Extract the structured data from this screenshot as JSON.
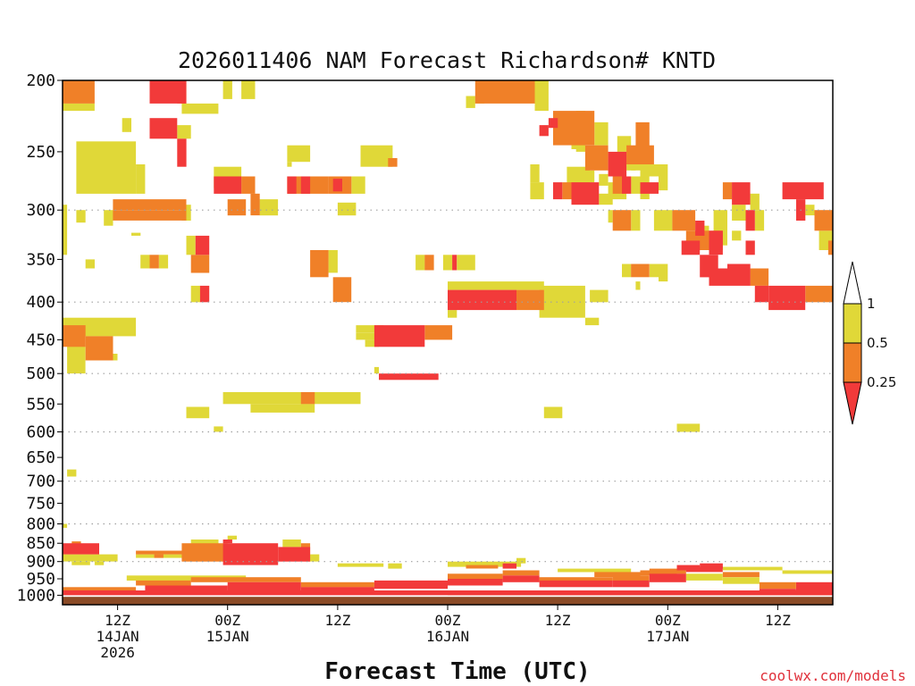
{
  "chart_data": {
    "type": "heatmap",
    "title": "2026011406 NAM Forecast Richardson# KNTD",
    "xlabel": "Forecast Time (UTC)",
    "credit": "coolwx.com/models",
    "y_axis": {
      "units": "hPa",
      "scale": "log",
      "range": [
        200,
        1030
      ],
      "ticks": [
        200,
        250,
        300,
        350,
        400,
        450,
        500,
        550,
        600,
        650,
        700,
        750,
        800,
        850,
        900,
        950,
        1000
      ],
      "tick_labels": [
        "200",
        "250",
        "300",
        "350",
        "400",
        "450",
        "500",
        "550",
        "600",
        "650",
        "700",
        "750",
        "800",
        "850",
        "900",
        "950",
        "1000"
      ],
      "dotted_gridlines": [
        300,
        400,
        500,
        600,
        700,
        800,
        900
      ]
    },
    "x_axis": {
      "units": "hours from 2026-01-14 06Z",
      "range": [
        0,
        84
      ],
      "ticks": [
        {
          "hour": 6,
          "lines": [
            "12Z",
            "14JAN",
            "2026"
          ]
        },
        {
          "hour": 18,
          "lines": [
            "00Z",
            "15JAN"
          ]
        },
        {
          "hour": 30,
          "lines": [
            "12Z"
          ]
        },
        {
          "hour": 42,
          "lines": [
            "00Z",
            "16JAN"
          ]
        },
        {
          "hour": 54,
          "lines": [
            "12Z"
          ]
        },
        {
          "hour": 66,
          "lines": [
            "00Z",
            "17JAN"
          ]
        },
        {
          "hour": 78,
          "lines": [
            "12Z"
          ]
        }
      ]
    },
    "colorbar": {
      "labels": [
        "1",
        "0.5",
        "0.25"
      ],
      "categories": [
        {
          "name": "Ri<0.25",
          "color": "#f23a3a"
        },
        {
          "name": "0.25-0.5",
          "color": "#f08028"
        },
        {
          "name": "0.5-1",
          "color": "#e0d838"
        }
      ]
    },
    "ground_color": "#8a4a26",
    "cells": [
      [
        0,
        3.5,
        200,
        215,
        "o"
      ],
      [
        0,
        3.5,
        215,
        220,
        "y"
      ],
      [
        9.5,
        13.5,
        200,
        215,
        "r"
      ],
      [
        12.5,
        13.5,
        200,
        215,
        "o"
      ],
      [
        13,
        17,
        215,
        222,
        "y"
      ],
      [
        17.5,
        18.5,
        200,
        212,
        "y"
      ],
      [
        19.5,
        21,
        200,
        212,
        "y"
      ],
      [
        9.5,
        12.5,
        225,
        240,
        "r"
      ],
      [
        10.5,
        11,
        228,
        236,
        "o"
      ],
      [
        12.5,
        14,
        230,
        240,
        "y"
      ],
      [
        6.5,
        7.5,
        225,
        235,
        "y"
      ],
      [
        1.5,
        8,
        242,
        285,
        "y"
      ],
      [
        8,
        9,
        260,
        285,
        "y"
      ],
      [
        12.5,
        13.5,
        240,
        262,
        "r"
      ],
      [
        16.5,
        19.5,
        262,
        280,
        "y"
      ],
      [
        16.5,
        19.5,
        270,
        285,
        "r"
      ],
      [
        19.5,
        21,
        270,
        285,
        "o"
      ],
      [
        20.5,
        21.5,
        285,
        305,
        "o"
      ],
      [
        18,
        20,
        290,
        305,
        "o"
      ],
      [
        21.5,
        23.5,
        290,
        305,
        "y"
      ],
      [
        24.5,
        27,
        245,
        258,
        "y"
      ],
      [
        24.5,
        25,
        258,
        262,
        "y"
      ],
      [
        24.5,
        29,
        270,
        285,
        "o"
      ],
      [
        24.5,
        25.5,
        270,
        285,
        "r"
      ],
      [
        26,
        27,
        270,
        285,
        "r"
      ],
      [
        29,
        31.5,
        270,
        285,
        "o"
      ],
      [
        29.5,
        30.5,
        272,
        283,
        "r"
      ],
      [
        31.5,
        33,
        270,
        285,
        "y"
      ],
      [
        32.5,
        36,
        245,
        262,
        "y"
      ],
      [
        35.5,
        36.5,
        255,
        262,
        "o"
      ],
      [
        30,
        32,
        293,
        305,
        "y"
      ],
      [
        5.5,
        13.5,
        290,
        300,
        "o"
      ],
      [
        5.5,
        13.5,
        300,
        310,
        "o"
      ],
      [
        13,
        14,
        295,
        310,
        "y"
      ],
      [
        4.5,
        5.5,
        300,
        315,
        "y"
      ],
      [
        1.5,
        2.5,
        300,
        312,
        "y"
      ],
      [
        0,
        0.5,
        295,
        345,
        "y"
      ],
      [
        7.5,
        8.5,
        322,
        325,
        "y"
      ],
      [
        13.5,
        14.5,
        325,
        345,
        "y"
      ],
      [
        14.5,
        16,
        325,
        345,
        "r"
      ],
      [
        14,
        16,
        345,
        365,
        "o"
      ],
      [
        8.5,
        9.5,
        345,
        360,
        "y"
      ],
      [
        9.5,
        10.5,
        345,
        360,
        "o"
      ],
      [
        10.5,
        11.5,
        345,
        360,
        "y"
      ],
      [
        2.5,
        3.5,
        350,
        360,
        "y"
      ],
      [
        14,
        15,
        380,
        400,
        "y"
      ],
      [
        15,
        16,
        380,
        400,
        "r"
      ],
      [
        27,
        29,
        340,
        370,
        "o"
      ],
      [
        29,
        30,
        340,
        365,
        "y"
      ],
      [
        29.5,
        31.5,
        370,
        400,
        "o"
      ],
      [
        38.5,
        39.5,
        345,
        362,
        "y"
      ],
      [
        39.5,
        40.5,
        345,
        362,
        "o"
      ],
      [
        41.5,
        42.5,
        345,
        362,
        "y"
      ],
      [
        42.5,
        43,
        345,
        362,
        "r"
      ],
      [
        43,
        45,
        345,
        362,
        "y"
      ],
      [
        42,
        49.5,
        385,
        410,
        "r"
      ],
      [
        42,
        52.5,
        375,
        385,
        "y"
      ],
      [
        49.5,
        52.5,
        385,
        410,
        "o"
      ],
      [
        42,
        43,
        410,
        420,
        "y"
      ],
      [
        52,
        57,
        380,
        420,
        "y"
      ],
      [
        57,
        58.5,
        420,
        430,
        "y"
      ],
      [
        57.5,
        59.5,
        385,
        400,
        "y"
      ],
      [
        32,
        35,
        430,
        440,
        "y"
      ],
      [
        32,
        34.5,
        440,
        450,
        "y"
      ],
      [
        34,
        39.5,
        430,
        460,
        "r"
      ],
      [
        39.5,
        42.5,
        430,
        450,
        "o"
      ],
      [
        33,
        34.5,
        450,
        460,
        "y"
      ],
      [
        34.5,
        41,
        500,
        510,
        "r"
      ],
      [
        34,
        34.5,
        490,
        500,
        "y"
      ],
      [
        0,
        8,
        420,
        445,
        "y"
      ],
      [
        0,
        2.5,
        430,
        460,
        "o"
      ],
      [
        2.5,
        5.5,
        445,
        480,
        "o"
      ],
      [
        0.5,
        2.5,
        445,
        500,
        "y"
      ],
      [
        5.5,
        6,
        470,
        480,
        "y"
      ],
      [
        17.5,
        32.5,
        530,
        550,
        "y"
      ],
      [
        26,
        27.5,
        530,
        550,
        "o"
      ],
      [
        20.5,
        27.5,
        550,
        565,
        "y"
      ],
      [
        13.5,
        16,
        555,
        575,
        "y"
      ],
      [
        16.5,
        17.5,
        590,
        600,
        "y"
      ],
      [
        52.5,
        54.5,
        555,
        575,
        "y"
      ],
      [
        67,
        69.5,
        585,
        600,
        "y"
      ],
      [
        0.5,
        1.5,
        675,
        690,
        "y"
      ],
      [
        45,
        51.5,
        200,
        215,
        "o"
      ],
      [
        45,
        46,
        210,
        215,
        "y"
      ],
      [
        51.5,
        53,
        200,
        220,
        "y"
      ],
      [
        44,
        45,
        210,
        218,
        "y"
      ],
      [
        53.5,
        58,
        220,
        245,
        "o"
      ],
      [
        57,
        59.5,
        245,
        265,
        "o"
      ],
      [
        58,
        59.5,
        228,
        245,
        "y"
      ],
      [
        59.5,
        61.5,
        250,
        270,
        "r"
      ],
      [
        61.5,
        62.5,
        250,
        265,
        "y"
      ],
      [
        52,
        53,
        230,
        238,
        "r"
      ],
      [
        56,
        57,
        220,
        250,
        "y"
      ],
      [
        53,
        54,
        225,
        232,
        "r"
      ],
      [
        56.5,
        58,
        265,
        275,
        "y"
      ],
      [
        58.5,
        59.5,
        268,
        278,
        "y"
      ],
      [
        60,
        61,
        270,
        285,
        "o"
      ],
      [
        61,
        62,
        270,
        285,
        "r"
      ],
      [
        62,
        64,
        270,
        285,
        "y"
      ],
      [
        55,
        57.5,
        262,
        278,
        "y"
      ],
      [
        59.5,
        61.5,
        275,
        290,
        "y"
      ],
      [
        53.5,
        54.5,
        275,
        290,
        "r"
      ],
      [
        54.5,
        55.5,
        275,
        290,
        "o"
      ],
      [
        55.5,
        58.5,
        275,
        295,
        "r"
      ],
      [
        58.5,
        60,
        285,
        295,
        "y"
      ],
      [
        51,
        52,
        260,
        275,
        "y"
      ],
      [
        51,
        52.5,
        275,
        290,
        "y"
      ],
      [
        55.5,
        57,
        238,
        248,
        "y"
      ],
      [
        60.5,
        62,
        238,
        250,
        "y"
      ],
      [
        62.5,
        64,
        228,
        250,
        "o"
      ],
      [
        62,
        64,
        250,
        265,
        "y"
      ],
      [
        61.5,
        64.5,
        245,
        260,
        "o"
      ],
      [
        63,
        65.5,
        260,
        270,
        "y"
      ],
      [
        65,
        66,
        260,
        282,
        "y"
      ],
      [
        60,
        62,
        300,
        320,
        "o"
      ],
      [
        62,
        63,
        300,
        320,
        "y"
      ],
      [
        59.5,
        60,
        300,
        312,
        "y"
      ],
      [
        61,
        62,
        355,
        370,
        "y"
      ],
      [
        62,
        64,
        355,
        370,
        "o"
      ],
      [
        64,
        65,
        355,
        370,
        "y"
      ],
      [
        65,
        66,
        355,
        375,
        "y"
      ],
      [
        62.5,
        63,
        375,
        385,
        "y"
      ],
      [
        63,
        65,
        275,
        285,
        "r"
      ],
      [
        63,
        64,
        285,
        290,
        "y"
      ],
      [
        64.5,
        66.5,
        300,
        320,
        "y"
      ],
      [
        66.5,
        69,
        300,
        320,
        "o"
      ],
      [
        69,
        70,
        310,
        325,
        "r"
      ],
      [
        68,
        72,
        320,
        340,
        "o"
      ],
      [
        71,
        72.5,
        300,
        335,
        "y"
      ],
      [
        69.5,
        70.5,
        315,
        330,
        "y"
      ],
      [
        70.5,
        72,
        320,
        345,
        "r"
      ],
      [
        67.5,
        69.5,
        330,
        345,
        "r"
      ],
      [
        69.5,
        71.5,
        345,
        370,
        "r"
      ],
      [
        70.5,
        72.5,
        360,
        380,
        "r"
      ],
      [
        72.5,
        75,
        355,
        380,
        "r"
      ],
      [
        72,
        73,
        275,
        290,
        "o"
      ],
      [
        73,
        75,
        275,
        295,
        "r"
      ],
      [
        75,
        76,
        285,
        300,
        "y"
      ],
      [
        73,
        74.5,
        295,
        310,
        "y"
      ],
      [
        74.5,
        75.5,
        300,
        320,
        "r"
      ],
      [
        75.5,
        76.5,
        300,
        320,
        "y"
      ],
      [
        74.5,
        75.5,
        330,
        345,
        "r"
      ],
      [
        73,
        74,
        320,
        330,
        "y"
      ],
      [
        78.5,
        83,
        275,
        290,
        "r"
      ],
      [
        80,
        81,
        290,
        310,
        "r"
      ],
      [
        81,
        82,
        295,
        305,
        "y"
      ],
      [
        82,
        84,
        300,
        320,
        "o"
      ],
      [
        82.5,
        84,
        320,
        340,
        "y"
      ],
      [
        83.5,
        84,
        330,
        345,
        "o"
      ],
      [
        75,
        77,
        360,
        380,
        "o"
      ],
      [
        75.5,
        77,
        380,
        400,
        "r"
      ],
      [
        77,
        81,
        380,
        410,
        "r"
      ],
      [
        81,
        84,
        380,
        400,
        "o"
      ],
      [
        77,
        78,
        400,
        410,
        "y"
      ],
      [
        79,
        80,
        400,
        410,
        "y"
      ],
      [
        0,
        4,
        850,
        880,
        "r"
      ],
      [
        1,
        2,
        845,
        855,
        "o"
      ],
      [
        0,
        0.5,
        800,
        810,
        "y"
      ],
      [
        0,
        6,
        880,
        900,
        "y"
      ],
      [
        1,
        3,
        900,
        910,
        "y"
      ],
      [
        3.5,
        4.5,
        900,
        910,
        "y"
      ],
      [
        8,
        14,
        870,
        880,
        "o"
      ],
      [
        8,
        14,
        880,
        890,
        "y"
      ],
      [
        10,
        11,
        880,
        890,
        "o"
      ],
      [
        13,
        18,
        850,
        900,
        "o"
      ],
      [
        17.5,
        23.5,
        850,
        910,
        "r"
      ],
      [
        14,
        17,
        840,
        860,
        "y"
      ],
      [
        17.5,
        18.5,
        840,
        850,
        "r"
      ],
      [
        18,
        19,
        830,
        840,
        "y"
      ],
      [
        23.5,
        27,
        860,
        900,
        "r"
      ],
      [
        24,
        26,
        840,
        860,
        "y"
      ],
      [
        26,
        27,
        850,
        880,
        "o"
      ],
      [
        26.5,
        28,
        880,
        900,
        "y"
      ],
      [
        42,
        50,
        900,
        915,
        "y"
      ],
      [
        44,
        47.5,
        910,
        920,
        "o"
      ],
      [
        48,
        49.5,
        905,
        920,
        "r"
      ],
      [
        49.5,
        50.5,
        890,
        905,
        "y"
      ],
      [
        30,
        35,
        905,
        915,
        "y"
      ],
      [
        35.5,
        37,
        905,
        920,
        "y"
      ],
      [
        54,
        62,
        920,
        930,
        "y"
      ],
      [
        58,
        63,
        930,
        945,
        "o"
      ],
      [
        63,
        67,
        925,
        940,
        "o"
      ],
      [
        67,
        69.5,
        910,
        925,
        "r"
      ],
      [
        69.5,
        72,
        905,
        920,
        "r"
      ],
      [
        72,
        78.5,
        915,
        925,
        "y"
      ],
      [
        78.5,
        84,
        925,
        935,
        "y"
      ],
      [
        7,
        20,
        940,
        955,
        "y"
      ],
      [
        8,
        14,
        955,
        970,
        "o"
      ],
      [
        9,
        18,
        970,
        985,
        "r"
      ],
      [
        14,
        26,
        945,
        960,
        "o"
      ],
      [
        18,
        26,
        960,
        985,
        "r"
      ],
      [
        26,
        34,
        960,
        975,
        "o"
      ],
      [
        26,
        34,
        975,
        990,
        "r"
      ],
      [
        34,
        42,
        955,
        980,
        "r"
      ],
      [
        42,
        48,
        935,
        950,
        "o"
      ],
      [
        42,
        48,
        950,
        970,
        "r"
      ],
      [
        48,
        52,
        925,
        940,
        "o"
      ],
      [
        48,
        52,
        940,
        960,
        "r"
      ],
      [
        52,
        60,
        945,
        955,
        "o"
      ],
      [
        52,
        60,
        955,
        975,
        "r"
      ],
      [
        60,
        64,
        940,
        955,
        "o"
      ],
      [
        60,
        64,
        955,
        975,
        "r"
      ],
      [
        64,
        68,
        920,
        935,
        "o"
      ],
      [
        64,
        68,
        935,
        960,
        "r"
      ],
      [
        68,
        72,
        915,
        930,
        "r"
      ],
      [
        68,
        72,
        935,
        955,
        "y"
      ],
      [
        72,
        76,
        930,
        945,
        "o"
      ],
      [
        72,
        76,
        945,
        965,
        "y"
      ],
      [
        76,
        80,
        960,
        980,
        "o"
      ],
      [
        76,
        80,
        980,
        995,
        "r"
      ],
      [
        80,
        84,
        960,
        985,
        "r"
      ],
      [
        80,
        84,
        985,
        1000,
        "o"
      ],
      [
        0,
        84,
        985,
        1000,
        "r"
      ],
      [
        0,
        8,
        975,
        990,
        "o"
      ],
      [
        42,
        84,
        990,
        1000,
        "o"
      ]
    ]
  }
}
